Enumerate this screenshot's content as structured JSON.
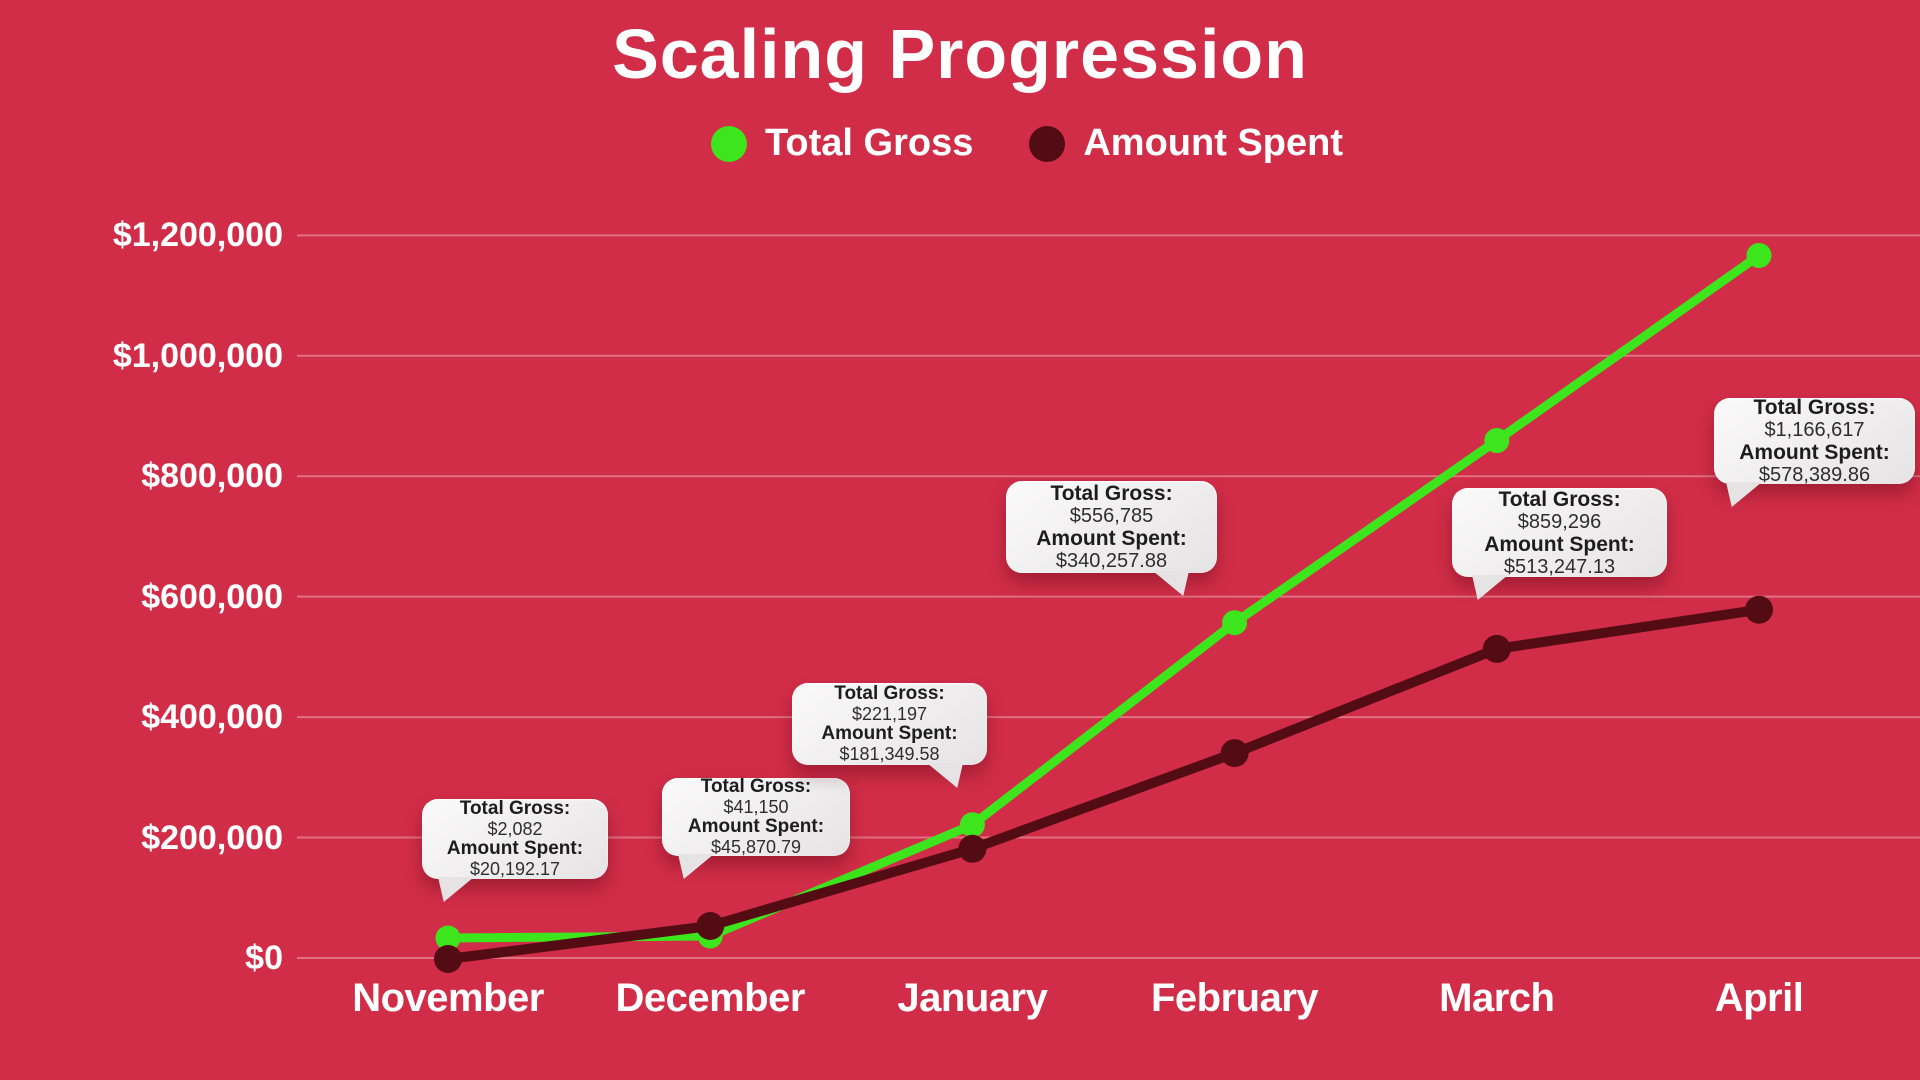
{
  "title": "Scaling Progression",
  "colors": {
    "background": "#d22d48",
    "total_gross": "#3ce51c",
    "amount_spent": "#530c13",
    "grid": "rgba(255,255,255,0.32)",
    "label": "#ffffff",
    "tooltip_bg": "#e9e7e8",
    "tooltip_text": "#1d1d1d"
  },
  "legend": [
    {
      "label": "Total Gross",
      "color": "#3ce51c"
    },
    {
      "label": "Amount Spent",
      "color": "#530c13"
    }
  ],
  "chart_data": {
    "type": "line",
    "title": "Scaling Progression",
    "categories": [
      "November",
      "December",
      "January",
      "February",
      "March",
      "April"
    ],
    "series": [
      {
        "name": "Total Gross",
        "color": "#3ce51c",
        "values": [
          2082,
          41150,
          221197,
          556785,
          859296,
          1166617
        ]
      },
      {
        "name": "Amount Spent",
        "color": "#530c13",
        "values": [
          20192.17,
          45870.79,
          181349.58,
          340257.88,
          513247.13,
          578389.86
        ]
      }
    ],
    "yticks": [
      "$1,200,000",
      "$1,000,000",
      "$800,000",
      "$600,000",
      "$400,000",
      "$200,000",
      "$0"
    ],
    "ytick_values": [
      1200000,
      1000000,
      800000,
      600000,
      400000,
      200000,
      0
    ],
    "ylim": [
      0,
      1250000
    ],
    "grid": true,
    "legend_position": "top"
  },
  "tooltips": [
    {
      "month": "November",
      "gross_label": "Total Gross:",
      "gross_value": "$2,082",
      "spent_label": "Amount Spent:",
      "spent_value": "$20,192.17"
    },
    {
      "month": "December",
      "gross_label": "Total Gross:",
      "gross_value": "$41,150",
      "spent_label": "Amount Spent:",
      "spent_value": "$45,870.79"
    },
    {
      "month": "January",
      "gross_label": "Total Gross:",
      "gross_value": "$221,197",
      "spent_label": "Amount Spent:",
      "spent_value": "$181,349.58"
    },
    {
      "month": "February",
      "gross_label": "Total Gross:",
      "gross_value": "$556,785",
      "spent_label": "Amount Spent:",
      "spent_value": "$340,257.88"
    },
    {
      "month": "March",
      "gross_label": "Total Gross:",
      "gross_value": "$859,296",
      "spent_label": "Amount Spent:",
      "spent_value": "$513,247.13"
    },
    {
      "month": "April",
      "gross_label": "Total Gross:",
      "gross_value": "$1,166,617",
      "spent_label": "Amount Spent:",
      "spent_value": "$578,389.86"
    }
  ]
}
